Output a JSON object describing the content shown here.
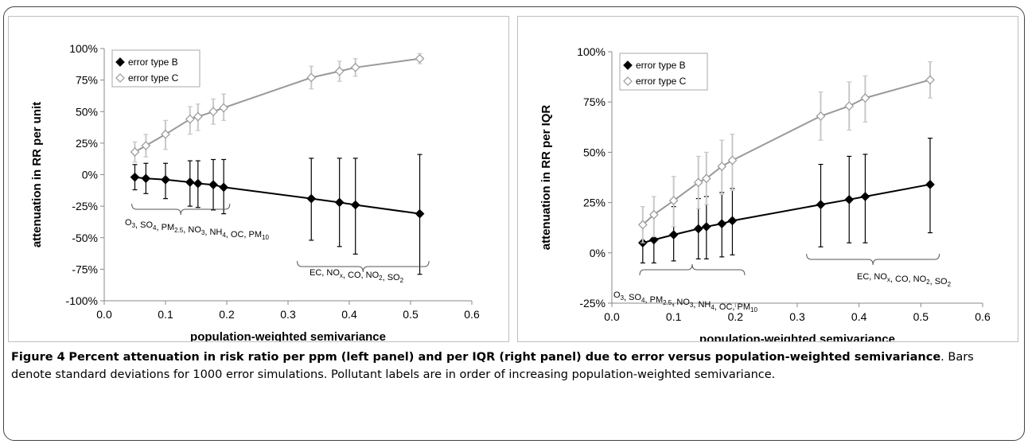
{
  "chart_data": [
    {
      "type": "scatter",
      "title": "",
      "xlabel": "population-weighted semivariance",
      "ylabel": "attenuation in RR per unit",
      "xlim": [
        0.0,
        0.6
      ],
      "ylim": [
        -100,
        100
      ],
      "xticks": [
        "0.0",
        "0.1",
        "0.2",
        "0.3",
        "0.4",
        "0.5",
        "0.6"
      ],
      "yticks": [
        "100%",
        "75%",
        "50%",
        "25%",
        "0%",
        "-25%",
        "-50%",
        "-75%",
        "-100%"
      ],
      "legend_position": "top-left",
      "series": [
        {
          "name": "error type B",
          "marker": "filled-diamond",
          "color": "#000000",
          "x": [
            0.05,
            0.068,
            0.1,
            0.14,
            0.153,
            0.178,
            0.195,
            0.338,
            0.384,
            0.41,
            0.515
          ],
          "y": [
            -2,
            -3,
            -4,
            -6,
            -7,
            -8,
            -10,
            -19,
            -22,
            -24,
            -31
          ],
          "err_low": [
            -12,
            -15,
            -19,
            -25,
            -26,
            -28,
            -31,
            -52,
            -57,
            -63,
            -79
          ],
          "err_high": [
            8,
            9,
            9,
            11,
            11,
            12,
            12,
            13,
            13,
            13,
            16
          ],
          "trendline": true
        },
        {
          "name": "error type C",
          "marker": "open-diamond",
          "color": "#999999",
          "x": [
            0.05,
            0.068,
            0.1,
            0.14,
            0.153,
            0.178,
            0.195,
            0.338,
            0.384,
            0.41,
            0.515
          ],
          "y": [
            18,
            23,
            32,
            44,
            46,
            50,
            53,
            77,
            82,
            85,
            92
          ],
          "err_low": [
            10,
            14,
            20,
            32,
            35,
            40,
            43,
            68,
            74,
            78,
            88
          ],
          "err_high": [
            26,
            32,
            43,
            54,
            56,
            60,
            64,
            86,
            90,
            92,
            96
          ],
          "trendline": true
        }
      ],
      "annotations": [
        {
          "text": "O3, SO4, PM2.5, NO3, NH4, OC, PM10",
          "group": "low"
        },
        {
          "text": "EC, NOx, CO, NO2, SO2",
          "group": "high"
        }
      ]
    },
    {
      "type": "scatter",
      "title": "",
      "xlabel": "population-weighted semivariance",
      "ylabel": "attenuation in RR per IQR",
      "xlim": [
        0.0,
        0.6
      ],
      "ylim": [
        -25,
        100
      ],
      "xticks": [
        "0.0",
        "0.1",
        "0.2",
        "0.3",
        "0.4",
        "0.5",
        "0.6"
      ],
      "yticks": [
        "100%",
        "75%",
        "50%",
        "25%",
        "0%",
        "-25%"
      ],
      "legend_position": "top-left",
      "series": [
        {
          "name": "error type B",
          "marker": "filled-diamond",
          "color": "#000000",
          "x": [
            0.05,
            0.068,
            0.1,
            0.14,
            0.153,
            0.178,
            0.195,
            0.338,
            0.384,
            0.41,
            0.515
          ],
          "y": [
            5,
            6.5,
            9,
            12,
            13,
            14.5,
            16,
            24,
            26.5,
            28,
            34
          ],
          "err_low": [
            -5,
            -5,
            -4,
            -3,
            -3,
            -2,
            -1,
            3,
            5,
            5,
            10
          ],
          "err_high": [
            14,
            18,
            23,
            27,
            28,
            30,
            32,
            44,
            48,
            49,
            57
          ],
          "trendline": true
        },
        {
          "name": "error type C",
          "marker": "open-diamond",
          "color": "#999999",
          "x": [
            0.05,
            0.068,
            0.1,
            0.14,
            0.153,
            0.178,
            0.195,
            0.338,
            0.384,
            0.41,
            0.515
          ],
          "y": [
            14,
            19,
            26,
            35,
            37,
            43,
            46,
            68,
            73,
            77,
            86
          ],
          "err_low": [
            5,
            8,
            13,
            22,
            24,
            29,
            31,
            56,
            61,
            65,
            77
          ],
          "err_high": [
            23,
            28,
            38,
            48,
            50,
            56,
            59,
            80,
            85,
            88,
            95
          ],
          "trendline": true
        }
      ],
      "annotations": [
        {
          "text": "O3, SO4, PM2.5, NO3, NH4, OC, PM10",
          "group": "low"
        },
        {
          "text": "EC, NOx, CO, NO2, SO2",
          "group": "high"
        }
      ]
    }
  ],
  "caption": {
    "label": "Figure 4",
    "bold_text": "Percent attenuation in risk ratio per ppm (left panel) and per IQR (right panel) due to error versus population-weighted semivariance",
    "rest": ". Bars denote standard deviations for 1000 error simulations. Pollutant labels are in order of increasing population-weighted semivariance."
  },
  "colors": {
    "series_b": "#000000",
    "series_c": "#999999",
    "errorbar_c": "#c8c8c8"
  }
}
